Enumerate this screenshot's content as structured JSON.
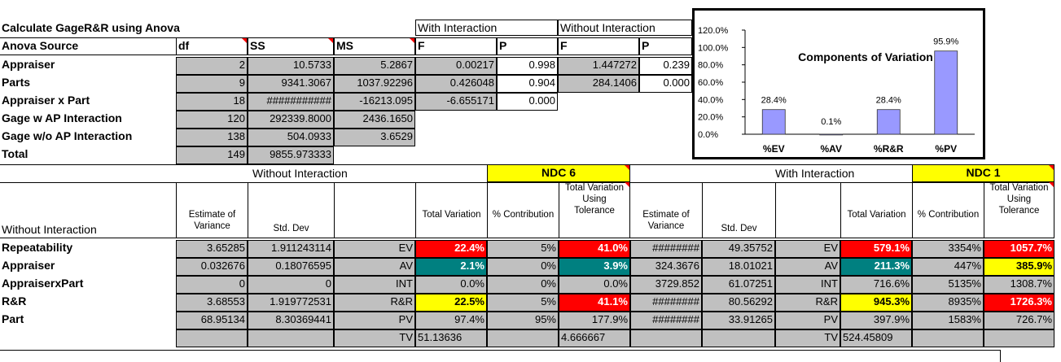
{
  "anova": {
    "title": "Calculate GageR&R using Anova",
    "headers": {
      "source": "Anova Source",
      "df": "df",
      "ss": "SS",
      "ms": "MS",
      "with_interaction": "With Interaction",
      "without_interaction": "Without Interaction",
      "f": "F",
      "p": "P",
      "f2": "F",
      "p2": "P"
    },
    "rows": [
      {
        "label": "Appraiser",
        "df": "2",
        "ss": "10.5733",
        "ms": "5.2867",
        "f": "0.00217",
        "p": "0.998",
        "f2": "1.447272",
        "p2": "0.239"
      },
      {
        "label": "Parts",
        "df": "9",
        "ss": "9341.3067",
        "ms": "1037.92296",
        "f": "0.426048",
        "p": "0.904",
        "f2": "284.1406",
        "p2": "0.000"
      },
      {
        "label": "Appraiser x Part",
        "df": "18",
        "ss": "###########",
        "ms": "-16213.095",
        "f": "-6.655171",
        "p": "0.000"
      },
      {
        "label": "Gage w AP Interaction",
        "df": "120",
        "ss": "292339.8000",
        "ms": "2436.1650"
      },
      {
        "label": "Gage w/o AP Interaction",
        "df": "138",
        "ss": "504.0933",
        "ms": "3.6529"
      },
      {
        "label": "Total",
        "df": "149",
        "ss": "9855.973333"
      }
    ]
  },
  "lower": {
    "without_interaction_band": "Without Interaction",
    "with_interaction_band": "With Interaction",
    "ndc_left_label": "NDC",
    "ndc_left_value": "6",
    "ndc_right_label": "NDC",
    "ndc_right_value": "1",
    "row_header": "Without  Interaction",
    "col_estimate": "Estimate of Variance",
    "col_stddev": "Std. Dev",
    "col_total_var": "Total Variation",
    "col_pct_contrib": "% Contribution",
    "col_tolerance": "Total Variation Using Tolerance",
    "rows": [
      {
        "label": "Repeatability",
        "est": "3.65285",
        "sd": "1.911243114",
        "code": "EV",
        "tv": "22.4%",
        "pc": "5%",
        "tol": "41.0%",
        "est2": "########",
        "sd2": "49.35752",
        "code2": "EV",
        "tv2": "579.1%",
        "pc2": "3354%",
        "tol2": "1057.7%"
      },
      {
        "label": "Appraiser",
        "est": "0.032676",
        "sd": "0.18076595",
        "code": "AV",
        "tv": "2.1%",
        "pc": "0%",
        "tol": "3.9%",
        "est2": "324.3676",
        "sd2": "18.01021",
        "code2": "AV",
        "tv2": "211.3%",
        "pc2": "447%",
        "tol2": "385.9%"
      },
      {
        "label": "AppraiserxPart",
        "est": "0",
        "sd": "0",
        "code": "INT",
        "tv": "0.0%",
        "pc": "0%",
        "tol": "0.0%",
        "est2": "3729.852",
        "sd2": "61.07251",
        "code2": "INT",
        "tv2": "716.6%",
        "pc2": "5135%",
        "tol2": "1308.7%"
      },
      {
        "label": "R&R",
        "est": "3.68553",
        "sd": "1.919772531",
        "code": "R&R",
        "tv": "22.5%",
        "pc": "5%",
        "tol": "41.1%",
        "est2": "########",
        "sd2": "80.56292",
        "code2": "R&R",
        "tv2": "945.3%",
        "pc2": "8935%",
        "tol2": "1726.3%"
      },
      {
        "label": "Part",
        "est": "68.95134",
        "sd": "8.30369441",
        "code": "PV",
        "tv": "97.4%",
        "pc": "95%",
        "tol": "177.9%",
        "est2": "########",
        "sd2": "33.91265",
        "code2": "PV",
        "tv2": "397.9%",
        "pc2": "1583%",
        "tol2": "726.7%"
      }
    ],
    "tv_row": {
      "code": "TV",
      "tv": "51.13636",
      "tol": "4.666667",
      "code2": "TV",
      "tv2": "524.45809"
    }
  },
  "chart_data": {
    "type": "bar",
    "title": "Components of Variation",
    "categories": [
      "%EV",
      "%AV",
      "%R&R",
      "%PV"
    ],
    "values": [
      28.4,
      0.1,
      28.4,
      95.9
    ],
    "data_labels": [
      "28.4%",
      "0.1%",
      "28.4%",
      "95.9%"
    ],
    "ylim": [
      0,
      120
    ],
    "yticks": [
      "0.0%",
      "20.0%",
      "40.0%",
      "60.0%",
      "80.0%",
      "100.0%",
      "120.0%"
    ],
    "bar_color": "#9999ff"
  }
}
